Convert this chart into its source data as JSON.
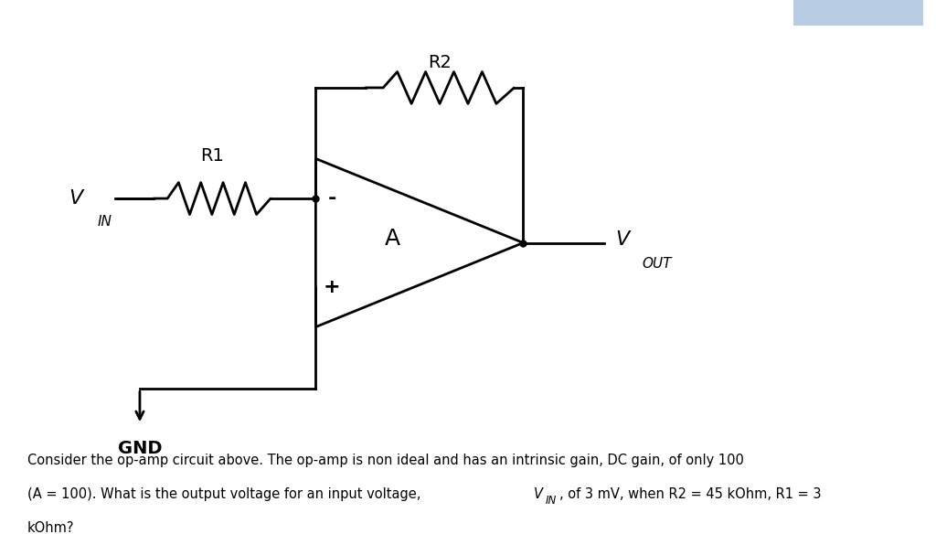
{
  "bg_color": "#ffffff",
  "fig_width": 10.24,
  "fig_height": 5.84,
  "text_color": "#000000",
  "body_text": "Consider the op-amp circuit above. The op-amp is non ideal and has an intrinsic gain, DC gain, of only 100\n(A = 100). What is the output voltage for an input voltage, V",
  "body_text2": ", of 3 mV, when R2 = 45 kOhm, R1 = 3\nkOhm?",
  "vin_label": "V",
  "vin_sub": "IN",
  "vout_label": "V",
  "vout_sub": "OUT",
  "r1_label": "R1",
  "r2_label": "R2",
  "gnd_label": "GND",
  "a_label": "A",
  "minus_label": "-",
  "plus_label": "+"
}
